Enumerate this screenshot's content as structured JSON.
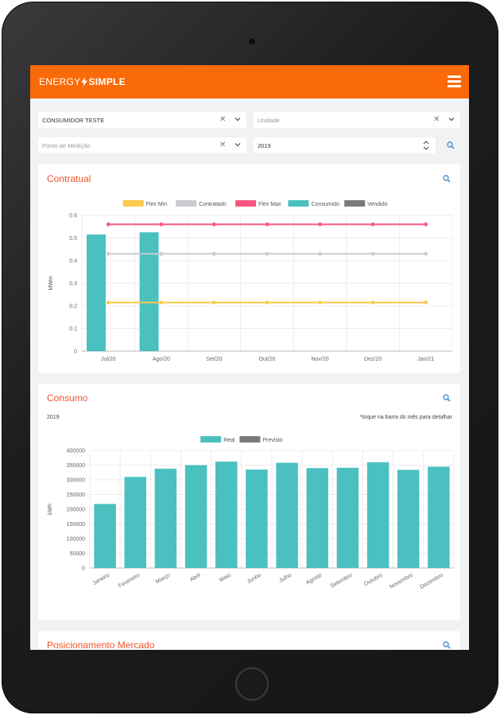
{
  "app": {
    "logo_energy": "ENERGY",
    "logo_simple": "SIMPLE",
    "brand_color": "#fb6a08"
  },
  "filters": {
    "consumer": {
      "value": "CONSUMIDOR TESTE"
    },
    "unit": {
      "placeholder": "Unidade"
    },
    "measure_point": {
      "placeholder": "Ponto de Medição"
    },
    "year": {
      "value": "2019"
    }
  },
  "contratual": {
    "title": "Contratual",
    "chart_data": {
      "type": "bar",
      "categories": [
        "Jul/20",
        "Ago/20",
        "Set/20",
        "Out/20",
        "Nov/20",
        "Dez/20",
        "Jan/21"
      ],
      "ylabel": "MWm",
      "ylim": [
        0,
        0.6
      ],
      "yticks": [
        "0",
        "0.1",
        "0.2",
        "0.3",
        "0.4",
        "0.5",
        "0.6"
      ],
      "legend_position": "top",
      "grid": true,
      "series": [
        {
          "name": "Flex Min",
          "type": "line",
          "color": "#fdc94d",
          "values": [
            0.215,
            0.215,
            0.215,
            0.215,
            0.215,
            0.215,
            0.215
          ]
        },
        {
          "name": "Contratado",
          "type": "line",
          "color": "#c9cbcf",
          "values": [
            0.43,
            0.43,
            0.43,
            0.43,
            0.43,
            0.43,
            0.43
          ]
        },
        {
          "name": "Flex Max",
          "type": "line",
          "color": "#f7577e",
          "values": [
            0.56,
            0.56,
            0.56,
            0.56,
            0.56,
            0.56,
            0.56
          ]
        },
        {
          "name": "Consumido",
          "type": "bar",
          "color": "#4bc0c0",
          "values": [
            0.515,
            0.525,
            null,
            null,
            null,
            null,
            null
          ]
        },
        {
          "name": "Vendido",
          "type": "bar",
          "color": "#7b7b7b",
          "values": [
            null,
            null,
            null,
            null,
            null,
            null,
            null
          ]
        }
      ]
    }
  },
  "consumo": {
    "title": "Consumo",
    "year_label": "2019",
    "hint": "*toque na barra do mês para detalhar",
    "chart_data": {
      "type": "bar",
      "categories": [
        "Janeiro",
        "Fevereiro",
        "Março",
        "Abril",
        "Maio",
        "Junho",
        "Julho",
        "Agosto",
        "Setembro",
        "Outubro",
        "Novembro",
        "Dezembro"
      ],
      "ylabel": "kWh",
      "ylim": [
        0,
        400000
      ],
      "yticks": [
        "0",
        "50000",
        "100000",
        "150000",
        "200000",
        "250000",
        "300000",
        "350000",
        "400000"
      ],
      "legend_position": "top",
      "grid": true,
      "series": [
        {
          "name": "Real",
          "color": "#4bc0c0",
          "values": [
            218000,
            310000,
            338000,
            350000,
            362000,
            335000,
            358000,
            340000,
            341000,
            360000,
            334000,
            345000
          ]
        },
        {
          "name": "Previsto",
          "color": "#7b7b7b",
          "values": [
            null,
            null,
            null,
            null,
            null,
            null,
            null,
            null,
            null,
            null,
            null,
            null
          ]
        }
      ]
    }
  },
  "mercado": {
    "title": "Posicionamento Mercado"
  }
}
